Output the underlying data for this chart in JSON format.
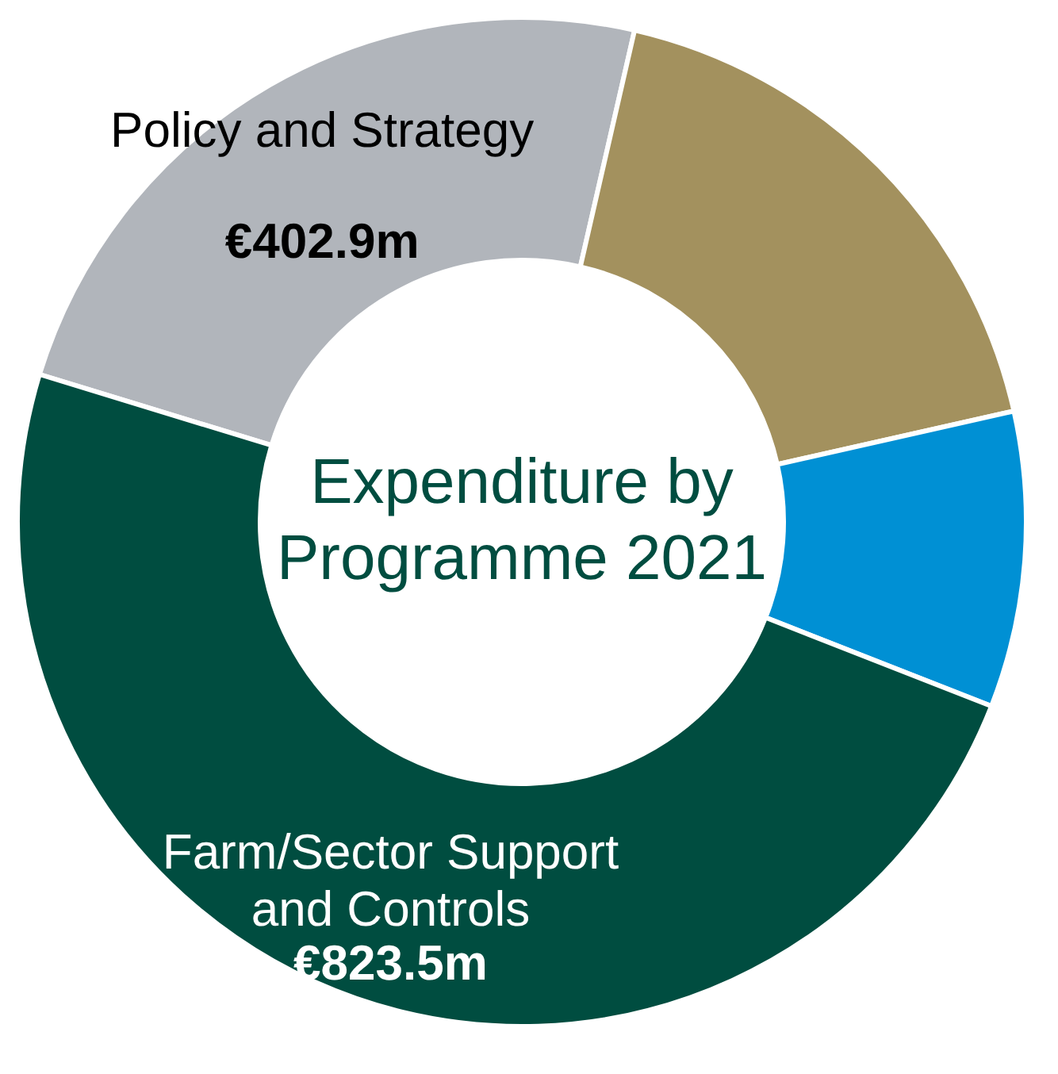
{
  "chart_data": {
    "type": "donut",
    "title": "Expenditure by Programme 2021",
    "categories": [
      "Policy and Strategy",
      null,
      null,
      "Farm/Sector Support and Controls"
    ],
    "values": [
      402.9,
      302,
      160,
      823.5
    ],
    "value_labels": [
      "€402.9m",
      null,
      null,
      "€823.5m"
    ],
    "colors": [
      "#b1b5bb",
      "#a3915e",
      "#0090d4",
      "#004d40"
    ],
    "legend": false
  }
}
